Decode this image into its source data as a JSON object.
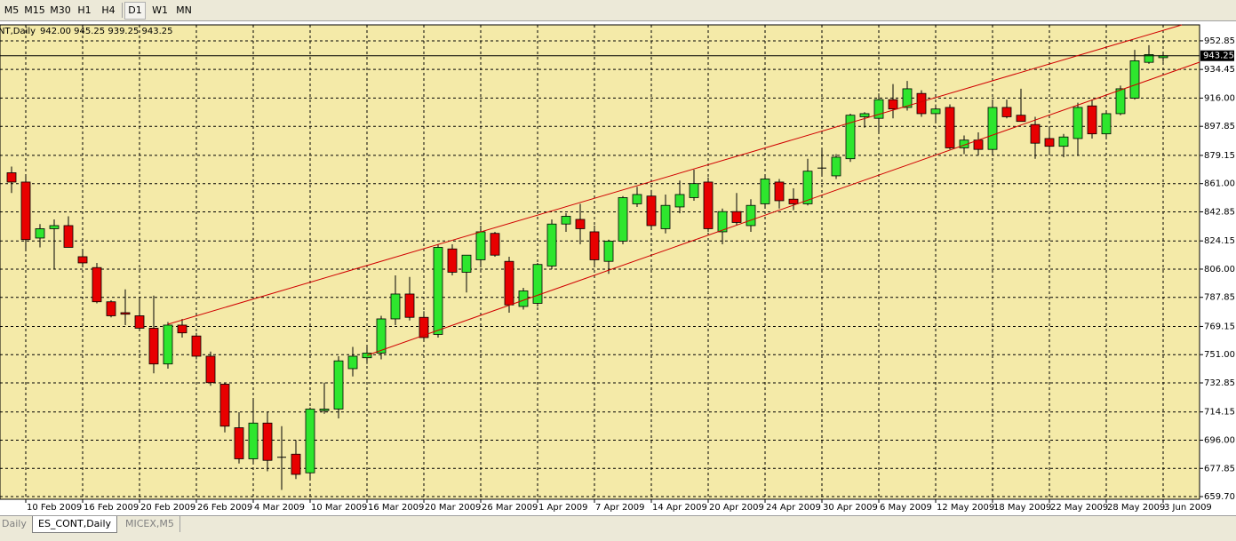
{
  "toolbar": {
    "buttons": [
      "M5",
      "M15",
      "M30",
      "H1",
      "H4",
      "D1",
      "W1",
      "MN"
    ]
  },
  "tabs": [
    "Daily",
    "ES_CONT,Daily",
    "MICEX,M5"
  ],
  "chart_data": {
    "type": "candlestick",
    "title": "NT,Daily",
    "subtitle": "942.00 945.25 939.25 943.25",
    "categories": [
      null,
      "10 Feb 2009",
      null,
      null,
      null,
      "16 Feb 2009",
      null,
      null,
      null,
      "20 Feb 2009",
      null,
      null,
      null,
      "26 Feb 2009",
      null,
      null,
      null,
      "4 Mar 2009",
      null,
      null,
      null,
      "10 Mar 2009",
      null,
      null,
      null,
      "16 Mar 2009",
      null,
      null,
      null,
      "20 Mar 2009",
      null,
      null,
      null,
      "26 Mar 2009",
      null,
      null,
      null,
      "1 Apr 2009",
      null,
      null,
      null,
      "7 Apr 2009",
      null,
      null,
      null,
      "14 Apr 2009",
      null,
      null,
      null,
      "20 Apr 2009",
      null,
      null,
      null,
      "24 Apr 2009",
      null,
      null,
      null,
      "30 Apr 2009",
      null,
      null,
      null,
      "6 May 2009",
      null,
      null,
      null,
      "12 May 2009",
      null,
      null,
      null,
      "18 May 2009",
      null,
      null,
      null,
      "22 May 2009",
      null,
      null,
      null,
      "28 May 2009",
      null,
      null,
      null,
      "3 Jun 2009"
    ],
    "open": [
      868,
      862,
      826,
      832,
      834,
      814,
      807,
      785,
      778,
      776,
      768,
      745,
      770,
      763,
      750,
      732,
      704,
      684,
      707,
      685,
      687,
      675,
      715,
      716,
      742,
      749,
      752,
      774,
      790,
      775,
      764,
      819,
      804,
      812,
      829,
      811,
      782,
      784,
      808,
      835,
      838,
      830,
      811,
      824,
      848,
      853,
      832,
      846,
      852,
      862,
      830,
      843,
      834,
      848,
      862,
      851,
      848,
      871,
      866,
      877,
      904,
      903,
      915,
      910,
      919,
      906,
      910,
      884,
      889,
      883,
      910,
      905,
      899,
      890,
      885,
      890,
      911,
      893,
      906,
      916,
      939,
      942
    ],
    "high": [
      872,
      866,
      835,
      838,
      840,
      818,
      810,
      786,
      793,
      787,
      789,
      772,
      774,
      765,
      753,
      733,
      714,
      722,
      714,
      705,
      696,
      717,
      733,
      750,
      756,
      756,
      776,
      802,
      801,
      779,
      822,
      822,
      815,
      834,
      830,
      814,
      794,
      810,
      838,
      842,
      848,
      834,
      825,
      853,
      859,
      857,
      854,
      863,
      870,
      865,
      845,
      855,
      851,
      866,
      864,
      858,
      877,
      884,
      880,
      906,
      907,
      919,
      925,
      927,
      921,
      912,
      912,
      892,
      894,
      914,
      915,
      922,
      904,
      897,
      893,
      913,
      915,
      907,
      924,
      947,
      950,
      945.25
    ],
    "low": [
      855,
      818,
      820,
      806,
      820,
      808,
      784,
      775,
      770,
      766,
      739,
      742,
      762,
      748,
      731,
      701,
      681,
      681,
      676,
      664,
      671,
      670,
      713,
      710,
      737,
      745,
      748,
      770,
      773,
      760,
      762,
      802,
      791,
      808,
      814,
      778,
      780,
      782,
      806,
      830,
      822,
      808,
      803,
      822,
      846,
      832,
      829,
      842,
      850,
      830,
      822,
      834,
      830,
      846,
      845,
      844,
      847,
      866,
      864,
      875,
      897,
      894,
      903,
      908,
      904,
      900,
      883,
      880,
      879,
      880,
      903,
      901,
      877,
      880,
      878,
      879,
      890,
      890,
      905,
      915,
      938,
      939.25
    ],
    "close": [
      862,
      825,
      832,
      834,
      820,
      810,
      785,
      776,
      777,
      768,
      745,
      770,
      765,
      750,
      733,
      705,
      684,
      707,
      683,
      685,
      674,
      716,
      716,
      747,
      750,
      752,
      774,
      790,
      775,
      762,
      820,
      804,
      815,
      830,
      815,
      783,
      792,
      809,
      835,
      840,
      832,
      812,
      824,
      852,
      854,
      834,
      847,
      854,
      861,
      832,
      843,
      836,
      847,
      864,
      850,
      848,
      869,
      871,
      878,
      905,
      906,
      915,
      909,
      922,
      906,
      909,
      884,
      889,
      883,
      910,
      904,
      901,
      887,
      885,
      891,
      910,
      893,
      906,
      922,
      940,
      944,
      943.25
    ],
    "bull_color": "#2ee62e",
    "bear_color": "#e80000",
    "ylim": [
      658.0,
      963.1
    ],
    "yticks": [
      952.85,
      934.45,
      {
        "value": 916,
        "label": "916.00"
      },
      897.85,
      879.15,
      {
        "value": 861,
        "label": "861.00"
      },
      842.85,
      824.15,
      {
        "value": 806,
        "label": "806.00"
      },
      787.85,
      769.15,
      {
        "value": 751,
        "label": "751.00"
      },
      732.85,
      714.15,
      {
        "value": 696,
        "label": "696.00"
      },
      677.85,
      {
        "value": 659.7,
        "label": "659.70"
      }
    ],
    "grid": true
  }
}
